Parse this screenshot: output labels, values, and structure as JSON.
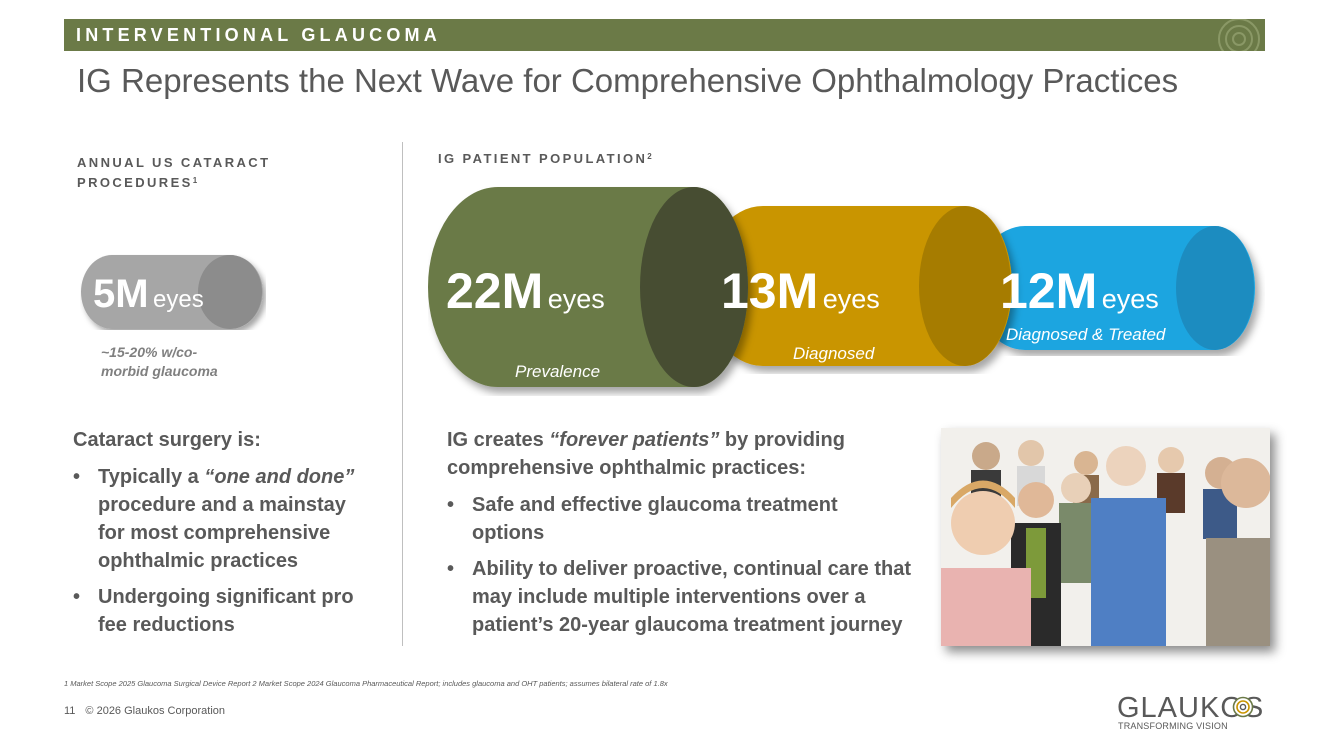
{
  "banner": {
    "title": "INTERVENTIONAL GLAUCOMA"
  },
  "slide": {
    "title": "IG Represents the Next Wave for Comprehensive Ophthalmology Practices"
  },
  "left": {
    "label": "ANNUAL US CATARACT PROCEDURES",
    "label_line1": "ANNUAL US CATARACT",
    "label_line2": "PROCEDURES",
    "label_ref": "1",
    "cylinder": {
      "value": "5M",
      "unit": "eyes",
      "color": "#a6a6a6"
    },
    "note_line1": "~15-20% w/co-",
    "note_line2": "morbid glaucoma",
    "heading": "Cataract surgery is:",
    "bullets": [
      {
        "prefix": "Typically a ",
        "emph": "“one and done”",
        "line1_rest": "",
        "line2": "procedure and a mainstay",
        "line3": "for most comprehensive",
        "line4": "ophthalmic practices"
      },
      {
        "line1": "Undergoing significant pro",
        "line2": "fee reductions"
      }
    ]
  },
  "right": {
    "label": "IG PATIENT POPULATION",
    "label_ref": "2",
    "cylinders": [
      {
        "value": "22M",
        "unit": "eyes",
        "caption": "Prevalence",
        "color": "#6b7a47"
      },
      {
        "value": "13M",
        "unit": "eyes",
        "caption": "Diagnosed",
        "color": "#c99500"
      },
      {
        "value": "12M",
        "unit": "eyes",
        "caption": "Diagnosed & Treated",
        "color": "#1ea5e0"
      }
    ],
    "heading_prefix": "IG creates ",
    "heading_emph": "“forever patients”",
    "heading_rest": " by providing",
    "heading_line2": "comprehensive ophthalmic practices:",
    "bullets": [
      {
        "line1": "Safe and effective glaucoma treatment",
        "line2": "options"
      },
      {
        "line1": "Ability to deliver proactive, continual care that",
        "line2": "may include multiple interventions over a",
        "line3": "patient’s 20-year glaucoma treatment journey"
      }
    ]
  },
  "footer": {
    "footnote": "1 Market Scope 2025 Glaucoma Surgical Device Report  2 Market Scope 2024 Glaucoma Pharmaceutical Report; includes glaucoma and OHT patients; assumes bilateral rate of 1.8x",
    "page_number": "11",
    "copyright": "© 2026 Glaukos Corporation"
  },
  "brand": {
    "name": "GLAUKOS",
    "tagline": "TRANSFORMING VISION"
  },
  "colors": {
    "olive": "#6b7a47",
    "gold": "#c99500",
    "blue": "#1ea5e0",
    "gray": "#a6a6a6",
    "text": "#595959"
  }
}
